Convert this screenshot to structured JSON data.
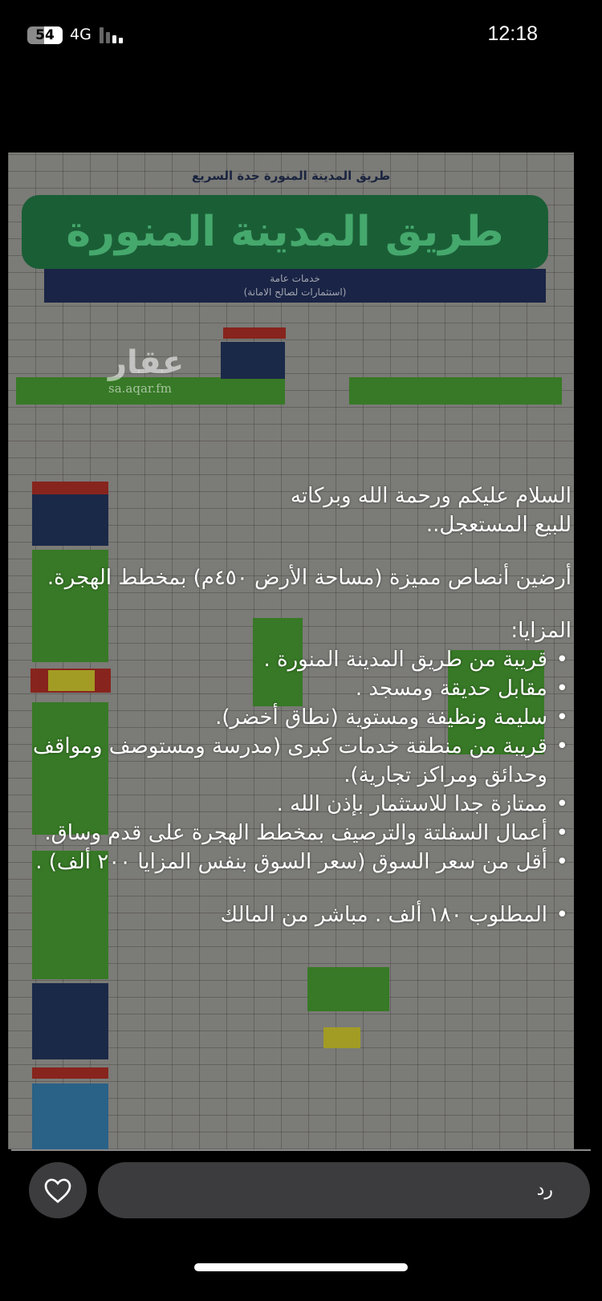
{
  "status_bar": {
    "battery": "54",
    "network": "4G",
    "time": "12:18"
  },
  "map_image": {
    "top_caption": "طريق المدينة المنورة جدة السريع",
    "banner_title": "طريق المدينة المنورة",
    "services_label": "خدمات عامة",
    "services_note": "(استثمارات لصالح الامانة)",
    "watermark_logo": "عقار",
    "watermark_url": "sa.aqar.fm"
  },
  "post": {
    "greeting": "السلام عليكم ورحمة الله وبركاته",
    "headline": "للبيع المستعجل..",
    "description": "أرضين أنصاص مميزة (مساحة الأرض ٤٥٠م) بمخطط الهجرة.",
    "features_title": "المزايا:",
    "features": [
      "قريبة من طريق المدينة المنورة .",
      "مقابل حديقة ومسجد .",
      "سليمة ونظيفة ومستوية (نطاق أخضر).",
      "قريبة من منطقة خدمات كبرى (مدرسة ومستوصف ومواقف وحدائق ومراكز تجارية).",
      "ممتازة جدا للاستثمار بإذن الله .",
      "أعمال السفلتة والترصيف بمخطط الهجرة على قدم وساق.",
      "أقل من سعر السوق (سعر السوق بنفس المزايا ٢٠٠ ألف) ."
    ],
    "price": "المطلوب ١٨٠ ألف . مباشر من المالك"
  },
  "reply_bar": {
    "placeholder": "رد",
    "like_icon": "heart-icon"
  }
}
